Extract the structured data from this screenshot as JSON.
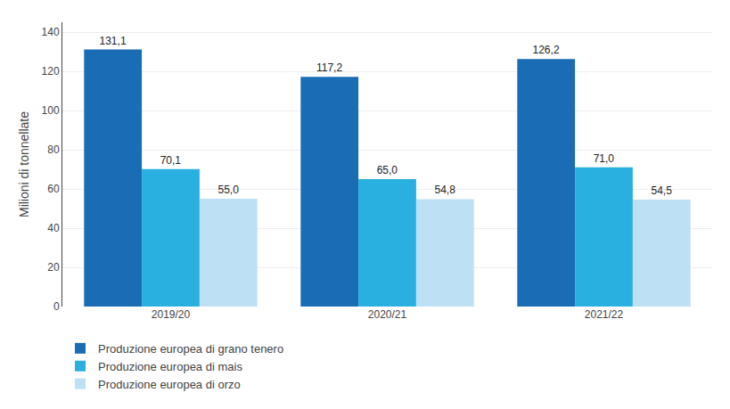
{
  "chart_data": {
    "type": "bar",
    "categories": [
      "2019/20",
      "2020/21",
      "2021/22"
    ],
    "series": [
      {
        "name": "Produzione europea di grano tenero",
        "color": "#1A6DB5",
        "values": [
          131.1,
          117.2,
          126.2
        ],
        "value_labels": [
          "131,1",
          "117,2",
          "126,2"
        ]
      },
      {
        "name": "Produzione europea di mais",
        "color": "#29B0E0",
        "values": [
          70.1,
          65.0,
          71.0
        ],
        "value_labels": [
          "70,1",
          "65,0",
          "71,0"
        ]
      },
      {
        "name": "Produzione europea di orzo",
        "color": "#BDE0F5",
        "values": [
          55.0,
          54.8,
          54.5
        ],
        "value_labels": [
          "55,0",
          "54,8",
          "54,5"
        ]
      }
    ],
    "ylabel": "Milioni di tonnellate",
    "ylim": [
      0,
      145
    ],
    "yticks": [
      0,
      20,
      40,
      60,
      80,
      100,
      120,
      140
    ],
    "grid": true,
    "legend": "bottom left",
    "data_labels": true
  }
}
